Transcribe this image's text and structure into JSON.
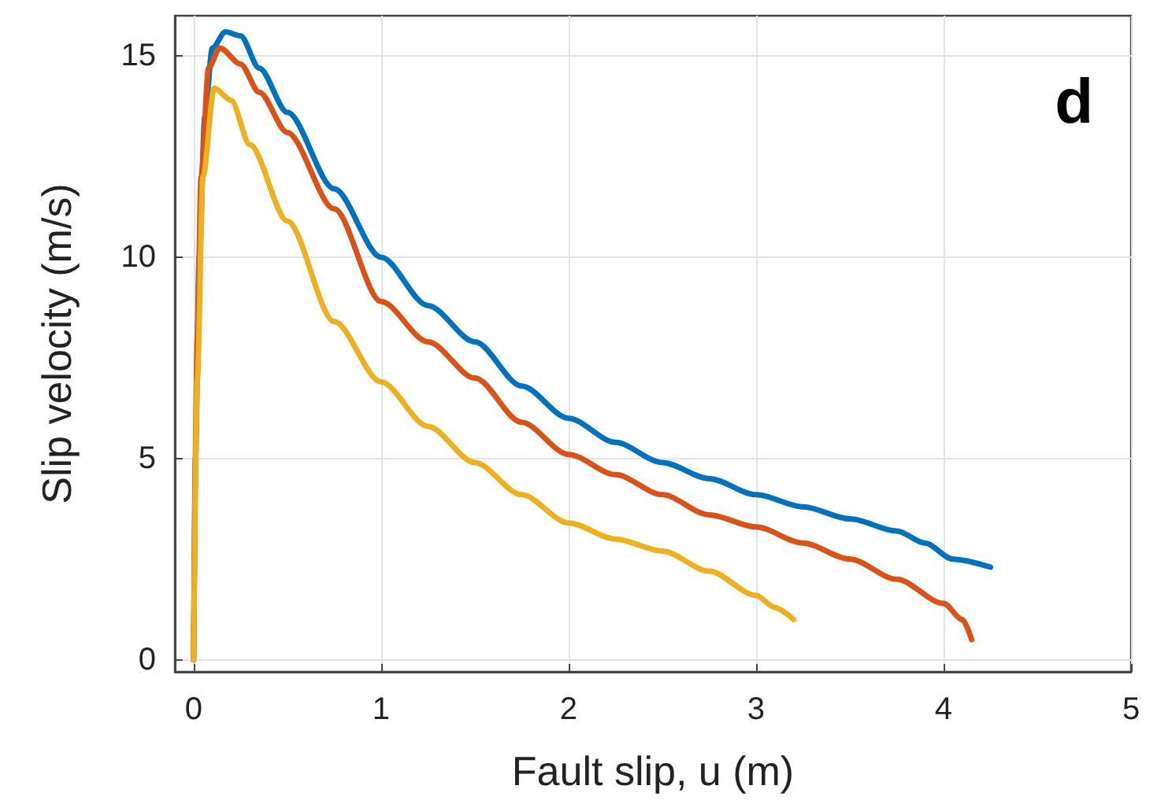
{
  "chart_data": {
    "type": "line",
    "xlabel": "Fault slip, u (m)",
    "ylabel": "Slip velocity (m/s)",
    "annotations": [
      "d"
    ],
    "xlim": [
      -0.1,
      5
    ],
    "xticks": [
      0,
      1,
      2,
      3,
      4,
      5
    ],
    "ylim": [
      -0.3,
      16
    ],
    "yticks": [
      0,
      5,
      10,
      15
    ],
    "grid": true,
    "marker": "none",
    "line_style": "solid",
    "series": [
      {
        "color": "#0072bd",
        "x": [
          0,
          0.01,
          0.03,
          0.06,
          0.1,
          0.17,
          0.25,
          0.35,
          0.5,
          0.75,
          1,
          1.25,
          1.5,
          1.75,
          2,
          2.25,
          2.5,
          2.75,
          3,
          3.25,
          3.5,
          3.75,
          3.9,
          4.05,
          4.25
        ],
        "values": [
          0,
          5,
          10,
          13.5,
          15.2,
          15.6,
          15.5,
          14.7,
          13.6,
          11.7,
          10,
          8.8,
          7.9,
          6.8,
          6,
          5.4,
          4.9,
          4.5,
          4.1,
          3.8,
          3.5,
          3.2,
          2.9,
          2.5,
          2.3
        ]
      },
      {
        "color": "#d95319",
        "x": [
          0,
          0.02,
          0.04,
          0.08,
          0.14,
          0.25,
          0.35,
          0.5,
          0.75,
          1,
          1.25,
          1.5,
          1.75,
          2,
          2.25,
          2.5,
          2.75,
          3,
          3.25,
          3.5,
          3.75,
          4,
          4.1,
          4.15
        ],
        "values": [
          0,
          8,
          12,
          14.7,
          15.2,
          14.8,
          14.1,
          13.1,
          11.2,
          8.9,
          7.9,
          7,
          5.9,
          5.1,
          4.6,
          4.1,
          3.6,
          3.3,
          2.9,
          2.5,
          2,
          1.4,
          1,
          0.5
        ]
      },
      {
        "color": "#edb120",
        "x": [
          0,
          0.02,
          0.05,
          0.11,
          0.2,
          0.3,
          0.5,
          0.75,
          1,
          1.25,
          1.5,
          1.75,
          2,
          2.25,
          2.5,
          2.75,
          3,
          3.1,
          3.2
        ],
        "values": [
          0,
          7,
          12,
          14.2,
          13.9,
          12.8,
          10.9,
          8.4,
          6.9,
          5.8,
          4.9,
          4.1,
          3.4,
          3,
          2.7,
          2.2,
          1.6,
          1.3,
          1
        ]
      }
    ]
  }
}
